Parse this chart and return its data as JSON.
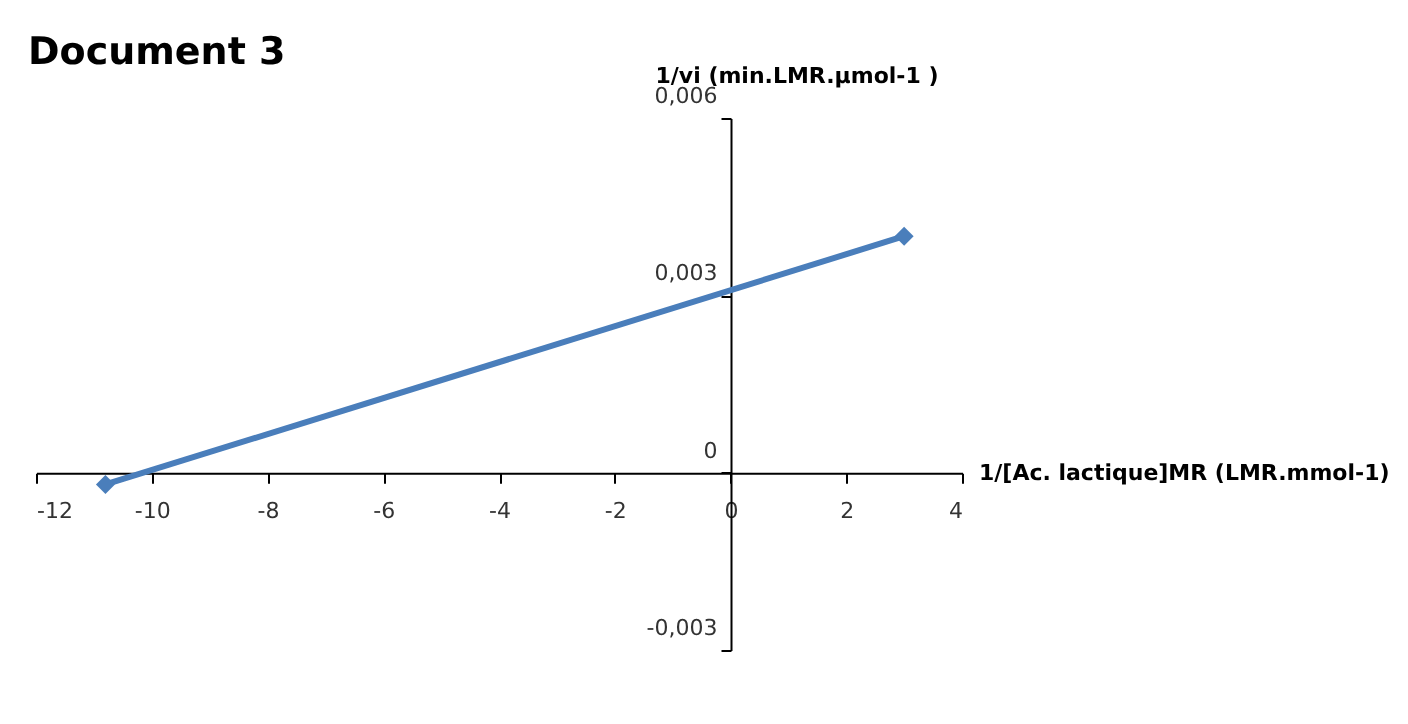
{
  "chart_data": {
    "type": "line",
    "title": "Document 3",
    "xlabel": "1/[Ac. lactique]MR (LMR.mmol-1)",
    "ylabel": "1/vi  (min.LMR.µmol-1 )",
    "x": [
      -10.8,
      3
    ],
    "series": [
      {
        "color": "#4a7ebb",
        "values": [
          -0.0002,
          0.004
        ]
      }
    ],
    "xlim": [
      -12,
      4
    ],
    "xticks": [
      -12,
      -10,
      -8,
      -6,
      -4,
      -2,
      0,
      2,
      4
    ],
    "ylim": [
      -0.003,
      0.006
    ],
    "yticks": [
      {
        "value": -0.003,
        "label": "-0,003"
      },
      0,
      {
        "value": 0.003,
        "label": "0,003"
      },
      {
        "value": 0.006,
        "label": "0,006"
      }
    ],
    "grid": false,
    "marker": "diamond",
    "line_style": "solid"
  }
}
